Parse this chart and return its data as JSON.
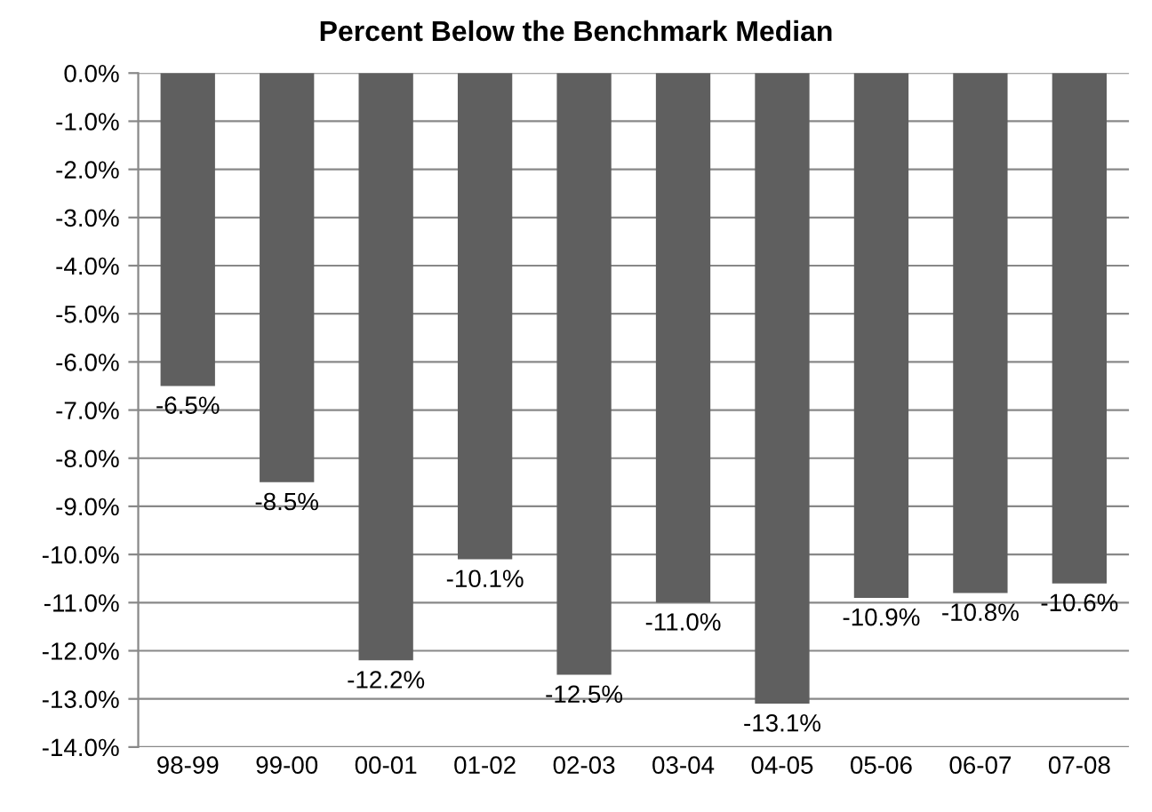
{
  "chart_data": {
    "type": "bar",
    "title": "Percent Below the Benchmark Median",
    "categories": [
      "98-99",
      "99-00",
      "00-01",
      "01-02",
      "02-03",
      "03-04",
      "04-05",
      "05-06",
      "06-07",
      "07-08"
    ],
    "values": [
      -6.5,
      -8.5,
      -12.2,
      -10.1,
      -12.5,
      -11.0,
      -13.1,
      -10.9,
      -10.8,
      -10.6
    ],
    "value_labels": [
      "-6.5%",
      "-8.5%",
      "-12.2%",
      "-10.1%",
      "-12.5%",
      "-11.0%",
      "-13.1%",
      "-10.9%",
      "-10.8%",
      "-10.6%"
    ],
    "color": "#5f5f5f",
    "ylim": [
      -14,
      0
    ],
    "yticks": [
      {
        "value": 0,
        "label": "0.0%"
      },
      {
        "value": -1,
        "label": "-1.0%"
      },
      {
        "value": -2,
        "label": "-2.0%"
      },
      {
        "value": -3,
        "label": "-3.0%"
      },
      {
        "value": -4,
        "label": "-4.0%"
      },
      {
        "value": -5,
        "label": "-5.0%"
      },
      {
        "value": -6,
        "label": "-6.0%"
      },
      {
        "value": -7,
        "label": "-7.0%"
      },
      {
        "value": -8,
        "label": "-8.0%"
      },
      {
        "value": -9,
        "label": "-9.0%"
      },
      {
        "value": -10,
        "label": "-10.0%"
      },
      {
        "value": -11,
        "label": "-11.0%"
      },
      {
        "value": -12,
        "label": "-12.0%"
      },
      {
        "value": -13,
        "label": "-13.0%"
      },
      {
        "value": -14,
        "label": "-14.0%"
      }
    ],
    "grid": "y"
  }
}
